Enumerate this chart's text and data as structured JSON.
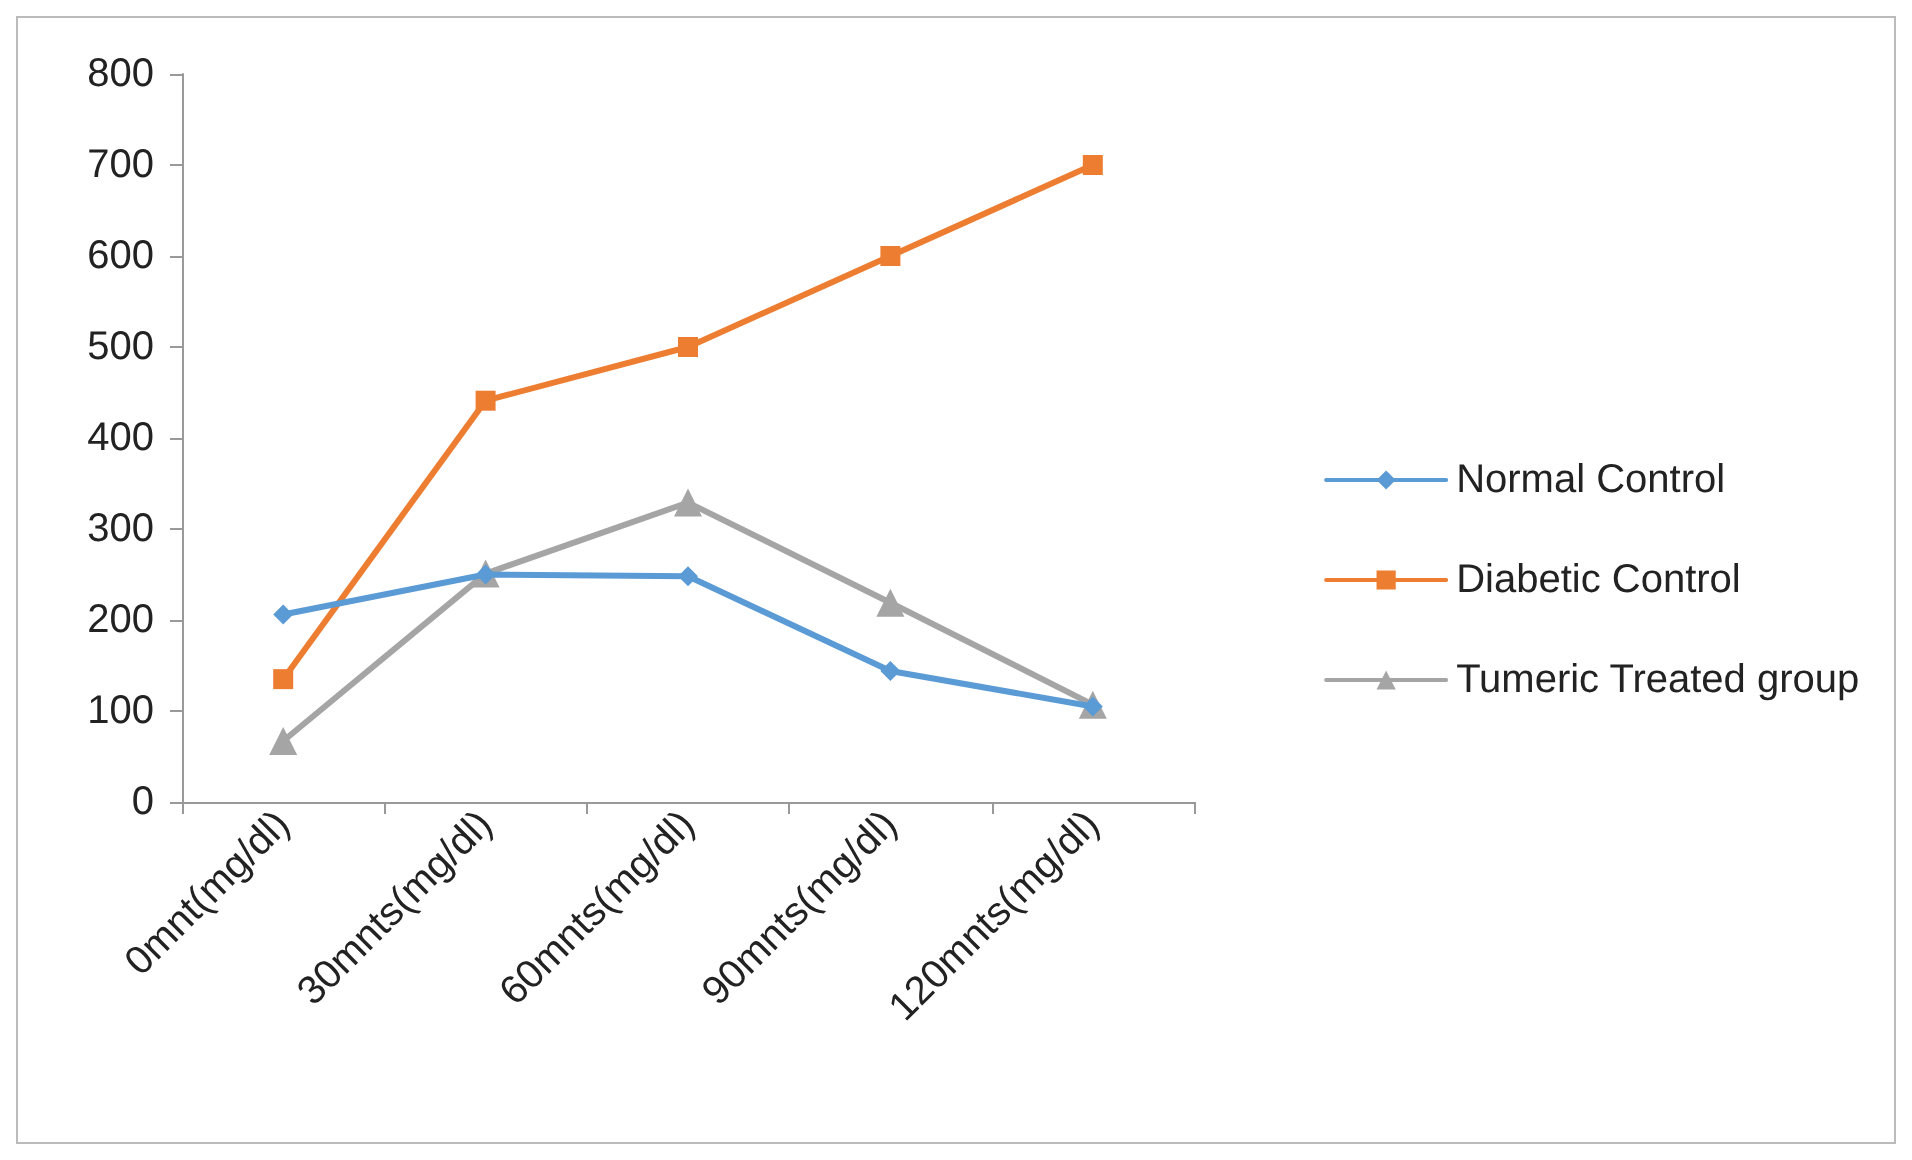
{
  "chart_data": {
    "type": "line",
    "categories": [
      "0mnt(mg/dl)",
      "30mnts(mg/dl)",
      "60mnts(mg/dl)",
      "90mnts(mg/dl)",
      "120mnts(mg/dl)"
    ],
    "series": [
      {
        "name": "Normal Control",
        "color": "#5b9bd5",
        "marker": "diamond",
        "values": [
          206,
          250,
          248,
          144,
          105
        ]
      },
      {
        "name": "Diabetic Control",
        "color": "#ed7d31",
        "marker": "square",
        "values": [
          135,
          441,
          500,
          600,
          700
        ]
      },
      {
        "name": "Tumeric Treated group",
        "color": "#a5a5a5",
        "marker": "triangle",
        "values": [
          67,
          251,
          329,
          219,
          107
        ]
      }
    ],
    "ylim": [
      0,
      800
    ],
    "yticks": [
      0,
      100,
      200,
      300,
      400,
      500,
      600,
      700,
      800
    ],
    "grid": false,
    "legend": "right",
    "line_style": "solid"
  }
}
